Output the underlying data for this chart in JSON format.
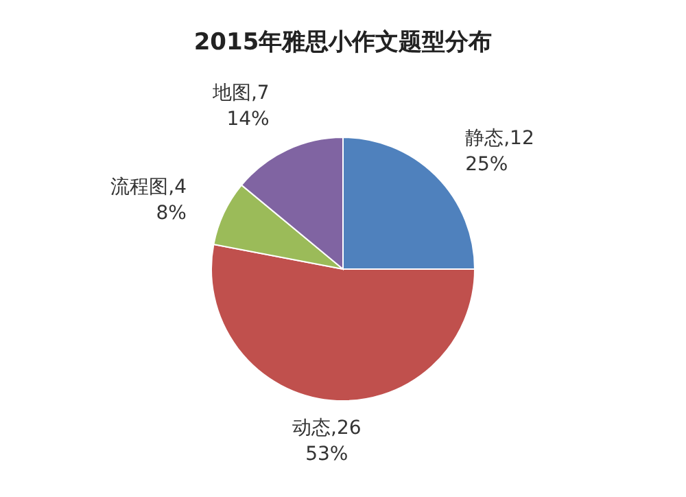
{
  "chart_data": {
    "type": "pie",
    "title": "2015年雅思小作文题型分布",
    "categories": [
      "静态,12",
      "动态,26",
      "流程图,4",
      "地图,7"
    ],
    "values": [
      25,
      53,
      8,
      14
    ],
    "value_labels": [
      "25%",
      "53%",
      "8%",
      "14%"
    ],
    "colors": [
      "#4f81bd",
      "#c0504d",
      "#9bbb59",
      "#8064a2"
    ]
  }
}
